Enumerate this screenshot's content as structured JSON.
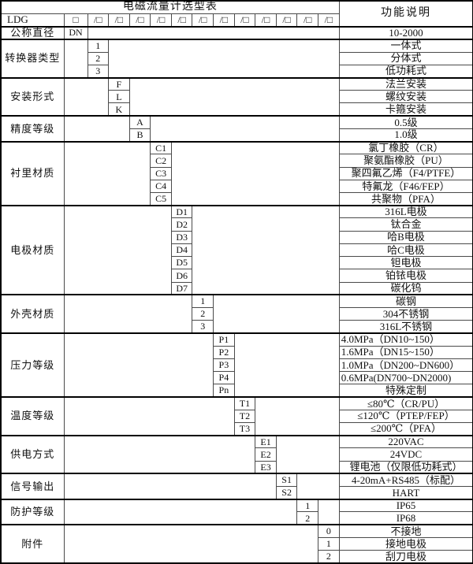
{
  "table": {
    "title": "电磁流量计选型表",
    "function_header": "功能说明",
    "model_row": {
      "prefix": "LDG",
      "first_box": "□",
      "slash_box": "/□",
      "slash_box_count": 12
    },
    "code_column_count": 13,
    "groups": [
      {
        "label": "公称直径",
        "col": 1,
        "rows": [
          {
            "code": "DN",
            "desc": "10-2000"
          }
        ]
      },
      {
        "label": "转换器类型",
        "col": 2,
        "rows": [
          {
            "code": "1",
            "desc": "一体式"
          },
          {
            "code": "2",
            "desc": "分体式"
          },
          {
            "code": "3",
            "desc": "低功耗式"
          }
        ]
      },
      {
        "label": "安装形式",
        "col": 3,
        "rows": [
          {
            "code": "F",
            "desc": "法兰安装"
          },
          {
            "code": "L",
            "desc": "螺纹安装"
          },
          {
            "code": "K",
            "desc": "卡箍安装"
          }
        ]
      },
      {
        "label": "精度等级",
        "col": 4,
        "rows": [
          {
            "code": "A",
            "desc": "0.5级"
          },
          {
            "code": "B",
            "desc": "1.0级"
          }
        ]
      },
      {
        "label": "衬里材质",
        "col": 5,
        "rows": [
          {
            "code": "C1",
            "desc": "氯丁橡胶（CR）"
          },
          {
            "code": "C2",
            "desc": "聚氨酯橡胶（PU）"
          },
          {
            "code": "C3",
            "desc": "聚四氟乙烯（F4/PTFE）"
          },
          {
            "code": "C4",
            "desc": "特氟龙（F46/FEP）"
          },
          {
            "code": "C5",
            "desc": "共聚物（PFA）"
          }
        ]
      },
      {
        "label": "电极材质",
        "col": 6,
        "rows": [
          {
            "code": "D1",
            "desc": "316L电极"
          },
          {
            "code": "D2",
            "desc": "钛合金"
          },
          {
            "code": "D3",
            "desc": "哈B电极"
          },
          {
            "code": "D4",
            "desc": "哈C电极"
          },
          {
            "code": "D5",
            "desc": "钽电极"
          },
          {
            "code": "D6",
            "desc": "铂铱电极"
          },
          {
            "code": "D7",
            "desc": "碳化钨"
          }
        ]
      },
      {
        "label": "外壳材质",
        "col": 7,
        "rows": [
          {
            "code": "1",
            "desc": "碳钢"
          },
          {
            "code": "2",
            "desc": "304不锈钢"
          },
          {
            "code": "3",
            "desc": "316L不锈钢"
          }
        ]
      },
      {
        "label": "压力等级",
        "col": 8,
        "rows": [
          {
            "code": "P1",
            "desc": "4.0MPa（DN10~150）",
            "align": "left"
          },
          {
            "code": "P2",
            "desc": "1.6MPa（DN15~150）",
            "align": "left"
          },
          {
            "code": "P3",
            "desc": "1.0MPa（DN200~DN600）",
            "align": "left"
          },
          {
            "code": "P4",
            "desc": "0.6MPa(DN700~DN2000)",
            "align": "left"
          },
          {
            "code": "Pn",
            "desc": "特殊定制"
          }
        ]
      },
      {
        "label": "温度等级",
        "col": 9,
        "rows": [
          {
            "code": "T1",
            "desc": "≤80℃（CR/PU）"
          },
          {
            "code": "T2",
            "desc": "≤120℃（PTEP/FEP）"
          },
          {
            "code": "T3",
            "desc": "≤200℃（PFA）"
          }
        ]
      },
      {
        "label": "供电方式",
        "col": 10,
        "rows": [
          {
            "code": "E1",
            "desc": "220VAC"
          },
          {
            "code": "E2",
            "desc": "24VDC"
          },
          {
            "code": "E3",
            "desc": "锂电池（仅限低功耗式）"
          }
        ]
      },
      {
        "label": "信号输出",
        "col": 11,
        "rows": [
          {
            "code": "S1",
            "desc": "4-20mA+RS485（标配）"
          },
          {
            "code": "S2",
            "desc": "HART"
          }
        ]
      },
      {
        "label": "防护等级",
        "col": 12,
        "rows": [
          {
            "code": "1",
            "desc": "IP65"
          },
          {
            "code": "2",
            "desc": "IP68"
          }
        ]
      },
      {
        "label": "附件",
        "col": 13,
        "rows": [
          {
            "code": "0",
            "desc": "不接地"
          },
          {
            "code": "1",
            "desc": "接地电极"
          },
          {
            "code": "2",
            "desc": "刮刀电极"
          }
        ]
      }
    ]
  }
}
